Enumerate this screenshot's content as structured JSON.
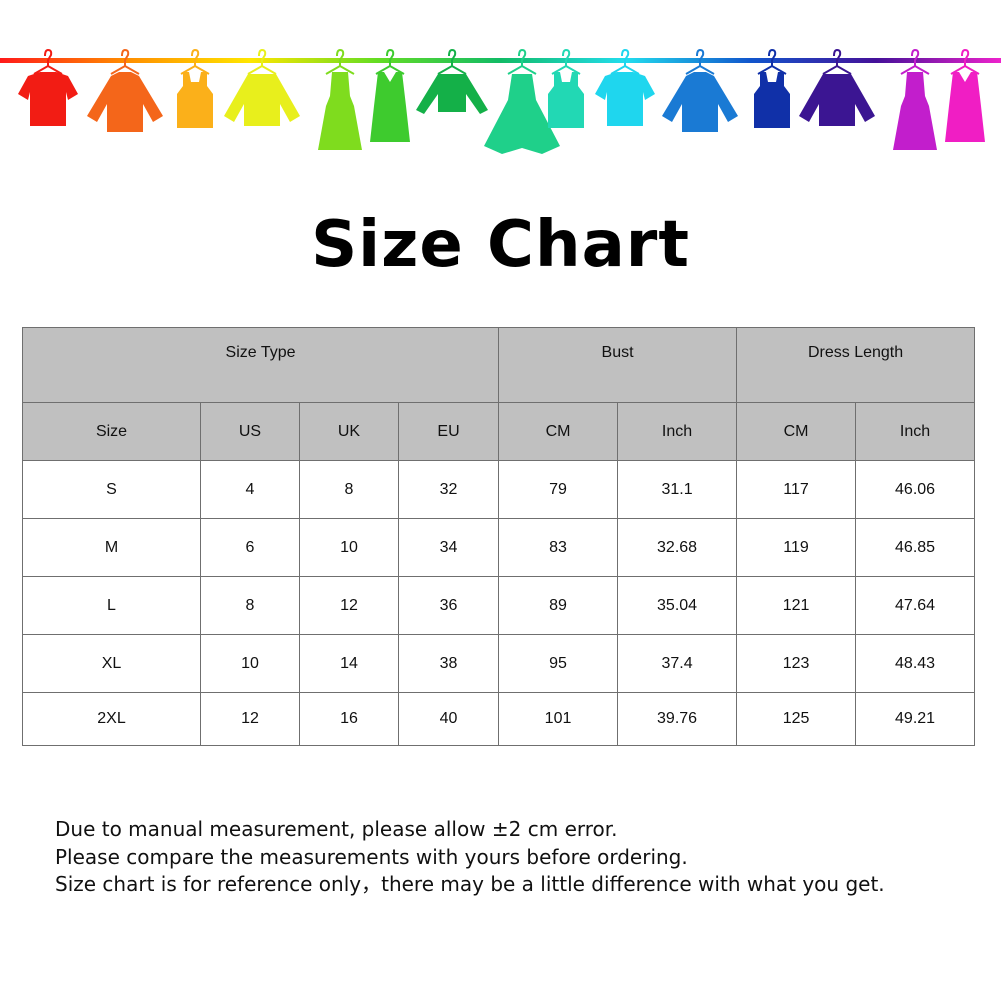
{
  "banner": {
    "rail_colors": [
      "#ff1a1a",
      "#ff8c00",
      "#ffe600",
      "#66dd22",
      "#11bb66",
      "#22ddee",
      "#1155cc",
      "#441199",
      "#ee22cc"
    ],
    "garments": [
      {
        "icon": "tshirt-icon",
        "color": "#f21c14"
      },
      {
        "icon": "shirt-icon",
        "color": "#f4661a"
      },
      {
        "icon": "tank-top-icon",
        "color": "#fbb01a"
      },
      {
        "icon": "cardigan-icon",
        "color": "#e8ef1c"
      },
      {
        "icon": "dress-icon",
        "color": "#7fdc1e"
      },
      {
        "icon": "belted-dress-icon",
        "color": "#3ecb2e"
      },
      {
        "icon": "sweater-icon",
        "color": "#14b048"
      },
      {
        "icon": "flared-dress-icon",
        "color": "#1fd08a"
      },
      {
        "icon": "tank-top-icon",
        "color": "#22d8b4"
      },
      {
        "icon": "tshirt-icon",
        "color": "#1fd6ee"
      },
      {
        "icon": "shirt-icon",
        "color": "#1a7ad4"
      },
      {
        "icon": "tank-top-icon",
        "color": "#1030a8"
      },
      {
        "icon": "cardigan-icon",
        "color": "#3b1592"
      },
      {
        "icon": "dress-icon",
        "color": "#c21ecc"
      },
      {
        "icon": "belted-dress-icon",
        "color": "#f01ec4"
      }
    ]
  },
  "title": "Size Chart",
  "table": {
    "groups": [
      "Size Type",
      "Bust",
      "Dress Length"
    ],
    "columns": [
      "Size",
      "US",
      "UK",
      "EU",
      "CM",
      "Inch",
      "CM",
      "Inch"
    ],
    "rows": [
      [
        "S",
        "4",
        "8",
        "32",
        "79",
        "31.1",
        "117",
        "46.06"
      ],
      [
        "M",
        "6",
        "10",
        "34",
        "83",
        "32.68",
        "119",
        "46.85"
      ],
      [
        "L",
        "8",
        "12",
        "36",
        "89",
        "35.04",
        "121",
        "47.64"
      ],
      [
        "XL",
        "10",
        "14",
        "38",
        "95",
        "37.4",
        "123",
        "48.43"
      ],
      [
        "2XL",
        "12",
        "16",
        "40",
        "101",
        "39.76",
        "125",
        "49.21"
      ]
    ]
  },
  "notes": [
    "Due to manual measurement, please allow ±2 cm error.",
    "Please compare the measurements with yours before ordering.",
    "Size chart is for reference only，there may be a little difference with what you get."
  ]
}
